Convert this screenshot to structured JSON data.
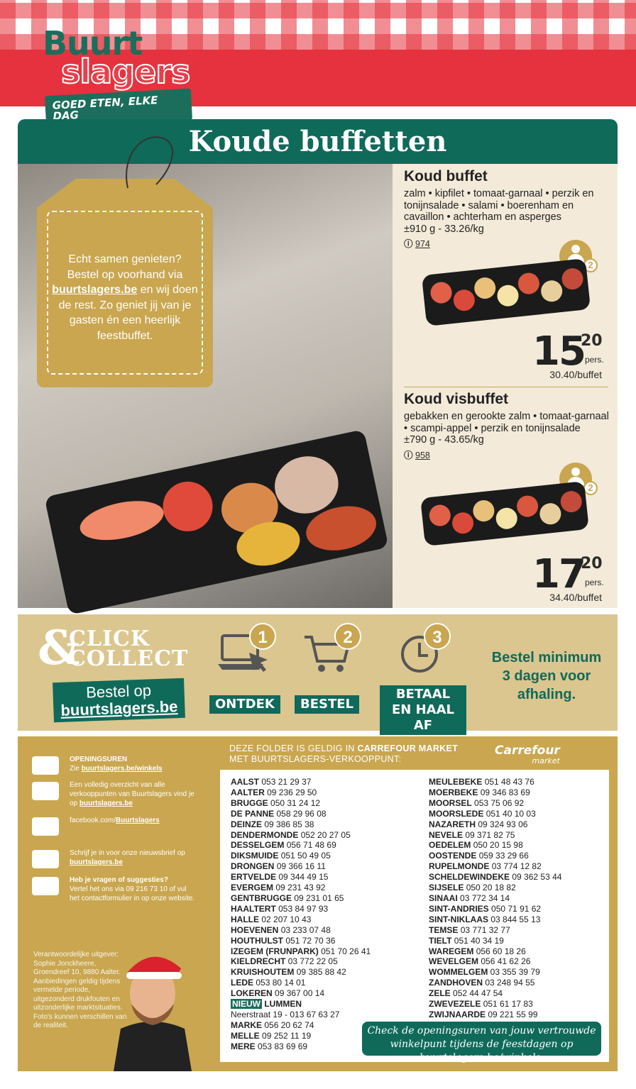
{
  "header": {
    "logo_line1": "Buurt",
    "logo_line2": "slagers",
    "tagline": "GOED ETEN, ELKE DAG"
  },
  "section_title": "Koude buffetten",
  "tag": {
    "text_before": "Echt samen genieten? Bestel op voorhand via",
    "link": "buurtslagers.be",
    "text_after": "en wij doen de rest. Zo geniet jij van je gasten én een heerlijk feestbuffet."
  },
  "products": [
    {
      "name": "Koud buffet",
      "description": "zalm • kipfilet • tomaat-garnaal • perzik en tonijnsalade • salami • boerenham en cavaillon • achterham en asperges",
      "weight": "±910 g - 33.26/kg",
      "info_icon": "ⓘ",
      "code": "974",
      "persons_label": "PERS.",
      "persons": "2",
      "price_main": "15",
      "price_cents": "20",
      "price_unit": "pers.",
      "price_total": "30.40/buffet"
    },
    {
      "name": "Koud visbuffet",
      "description": "gebakken en gerookte zalm • tomaat-garnaal • scampi-appel • perzik en tonijnsalade",
      "weight": "±790 g - 43.65/kg",
      "info_icon": "ⓘ",
      "code": "958",
      "persons_label": "PERS.",
      "persons": "2",
      "price_main": "17",
      "price_cents": "20",
      "price_unit": "pers.",
      "price_total": "34.40/buffet"
    }
  ],
  "click_collect": {
    "logo_amp": "&",
    "logo_line1": "CLICK",
    "logo_line2": "COLLECT",
    "order_text": "Bestel op",
    "order_link": "buurtslagers.be",
    "steps": [
      {
        "number": "1",
        "label": "ONTDEK"
      },
      {
        "number": "2",
        "label": "BESTEL"
      },
      {
        "number": "3",
        "label": "BETAAL EN HAAL AF"
      }
    ],
    "note": "Bestel minimum 3 dagen voor afhaling."
  },
  "info": [
    {
      "title": "OPENINGSUREN",
      "text": "Zie",
      "link": "buurtslagers.be/winkels"
    },
    {
      "text": "Een volledig overzicht van alle verkooppunten van Buurtslagers vind je op",
      "link": "buurtslagers.be"
    },
    {
      "text": "facebook.com/",
      "link": "Buurtslagers"
    },
    {
      "text": "Schrijf je in voor onze nieuwsbrief op",
      "link": "buurtslagers.be"
    },
    {
      "title": "Heb je vragen of suggesties?",
      "text": "Vertel het ons via 09 216 73 10 of vul het contactformulier in op onze website."
    }
  ],
  "publisher": "Verantwoordelijke uitgever: Sophie Jonckheere, Groendreef 10, 9880 Aalter. Aanbiedingen geldig tijdens vermelde periode, uitgezonderd drukfouten en uitzonderlijke marktsituaties. Foto's kunnen verschillen van de realiteit.",
  "stores": {
    "heading_before": "DEZE FOLDER IS GELDIG IN",
    "heading_brand": "CARREFOUR MARKET",
    "heading_after": "MET BUURTSLAGERS-VERKOOPPUNT:",
    "brand_logo": "Carrefour",
    "brand_sub": "market",
    "left": [
      {
        "name": "AALST",
        "phone": "053 21 29 37"
      },
      {
        "name": "AALTER",
        "phone": "09 236 29 50"
      },
      {
        "name": "BRUGGE",
        "phone": "050 31 24 12"
      },
      {
        "name": "DE PANNE",
        "phone": "058 29 96 08"
      },
      {
        "name": "DEINZE",
        "phone": "09 386 85 38"
      },
      {
        "name": "DENDERMONDE",
        "phone": "052 20 27 05"
      },
      {
        "name": "DESSELGEM",
        "phone": "056 71 48 69"
      },
      {
        "name": "DIKSMUIDE",
        "phone": "051 50 49 05"
      },
      {
        "name": "DRONGEN",
        "phone": "09 366 16 11"
      },
      {
        "name": "ERTVELDE",
        "phone": "09 344 49 15"
      },
      {
        "name": "EVERGEM",
        "phone": "09 231 43 92"
      },
      {
        "name": "GENTBRUGGE",
        "phone": "09 231 01 65"
      },
      {
        "name": "HAALTERT",
        "phone": "053 84 97 93"
      },
      {
        "name": "HALLE",
        "phone": "02 207 10 43"
      },
      {
        "name": "HOEVENEN",
        "phone": "03 233 07 48"
      },
      {
        "name": "HOUTHULST",
        "phone": "051 72 70 36"
      },
      {
        "name": "IZEGEM (FRUNPARK)",
        "phone": "051 70 26 41"
      },
      {
        "name": "KIELDRECHT",
        "phone": "03 772 22 05"
      },
      {
        "name": "KRUISHOUTEM",
        "phone": "09 385 88 42"
      },
      {
        "name": "LEDE",
        "phone": "053 80 14 01"
      },
      {
        "name": "LOKEREN",
        "phone": "09 367 00 14"
      },
      {
        "badge": "NIEUW",
        "name": "LUMMEN",
        "address": "Neerstraat 19 - 013 67 63 27"
      },
      {
        "name": "MARKE",
        "phone": "056 20 62 74"
      },
      {
        "name": "MELLE",
        "phone": "09 252 11 19"
      },
      {
        "name": "MERE",
        "phone": "053 83 69 69"
      }
    ],
    "right": [
      {
        "name": "MEULEBEKE",
        "phone": "051 48 43 76"
      },
      {
        "name": "MOERBEKE",
        "phone": "09 346 83 69"
      },
      {
        "name": "MOORSEL",
        "phone": "053 75 06 92"
      },
      {
        "name": "MOORSLEDE",
        "phone": "051 40 10 03"
      },
      {
        "name": "NAZARETH",
        "phone": "09 324 93 06"
      },
      {
        "name": "NEVELE",
        "phone": "09 371 82 75"
      },
      {
        "name": "OEDELEM",
        "phone": "050 20 15 98"
      },
      {
        "name": "OOSTENDE",
        "phone": "059 33 29 66"
      },
      {
        "name": "RUPELMONDE",
        "phone": "03 774 12 82"
      },
      {
        "name": "SCHELDEWINDEKE",
        "phone": "09 362 53 44"
      },
      {
        "name": "SIJSELE",
        "phone": "050 20 18 82"
      },
      {
        "name": "SINAAI",
        "phone": "03 772 34 14"
      },
      {
        "name": "SINT-ANDRIES",
        "phone": "050 71 91 62"
      },
      {
        "name": "SINT-NIKLAAS",
        "phone": "03 844 55 13"
      },
      {
        "name": "TEMSE",
        "phone": "03 771 32 77"
      },
      {
        "name": "TIELT",
        "phone": "051 40 34 19"
      },
      {
        "name": "WAREGEM",
        "phone": "056 60 18 26"
      },
      {
        "name": "WEVELGEM",
        "phone": "056 41 62 26"
      },
      {
        "name": "WOMMELGEM",
        "phone": "03 355 39 79"
      },
      {
        "name": "ZANDHOVEN",
        "phone": "03 248 94 55"
      },
      {
        "name": "ZELE",
        "phone": "052 44 47 54"
      },
      {
        "name": "ZWEVEZELE",
        "phone": "051 61 17 83"
      },
      {
        "name": "ZWIJNAARDE",
        "phone": "09 221 55 99"
      }
    ],
    "note_text": "Check de openingsuren van jouw vertrouwde winkelpunt tijdens de feestdagen op",
    "note_link": "buurtslagers.be/winkels",
    "note_end": "."
  }
}
